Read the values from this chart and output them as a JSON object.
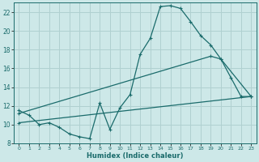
{
  "title": "",
  "xlabel": "Humidex (Indice chaleur)",
  "bg_color": "#cde8e8",
  "grid_color": "#b0d0d0",
  "line_color": "#1a6b6b",
  "xlim": [
    -0.5,
    23.5
  ],
  "ylim": [
    8,
    23
  ],
  "xticks": [
    0,
    1,
    2,
    3,
    4,
    5,
    6,
    7,
    8,
    9,
    10,
    11,
    12,
    13,
    14,
    15,
    16,
    17,
    18,
    19,
    20,
    21,
    22,
    23
  ],
  "yticks": [
    8,
    10,
    12,
    14,
    16,
    18,
    20,
    22
  ],
  "curve1_x": [
    0,
    1,
    2,
    3,
    4,
    5,
    6,
    7,
    8,
    9,
    10,
    11,
    12,
    13,
    14,
    15,
    16,
    17,
    18,
    19,
    20,
    21,
    22,
    23
  ],
  "curve1_y": [
    11.5,
    11.0,
    10.0,
    10.2,
    9.7,
    9.0,
    8.7,
    8.5,
    12.3,
    9.5,
    11.8,
    13.2,
    17.5,
    19.2,
    22.6,
    22.7,
    22.4,
    21.0,
    19.5,
    18.5,
    17.0,
    15.0,
    13.0,
    13.0
  ],
  "curve2_x": [
    0,
    19,
    20,
    23
  ],
  "curve2_y": [
    11.2,
    17.3,
    17.0,
    13.0
  ],
  "curve3_x": [
    0,
    23
  ],
  "curve3_y": [
    10.2,
    13.0
  ]
}
